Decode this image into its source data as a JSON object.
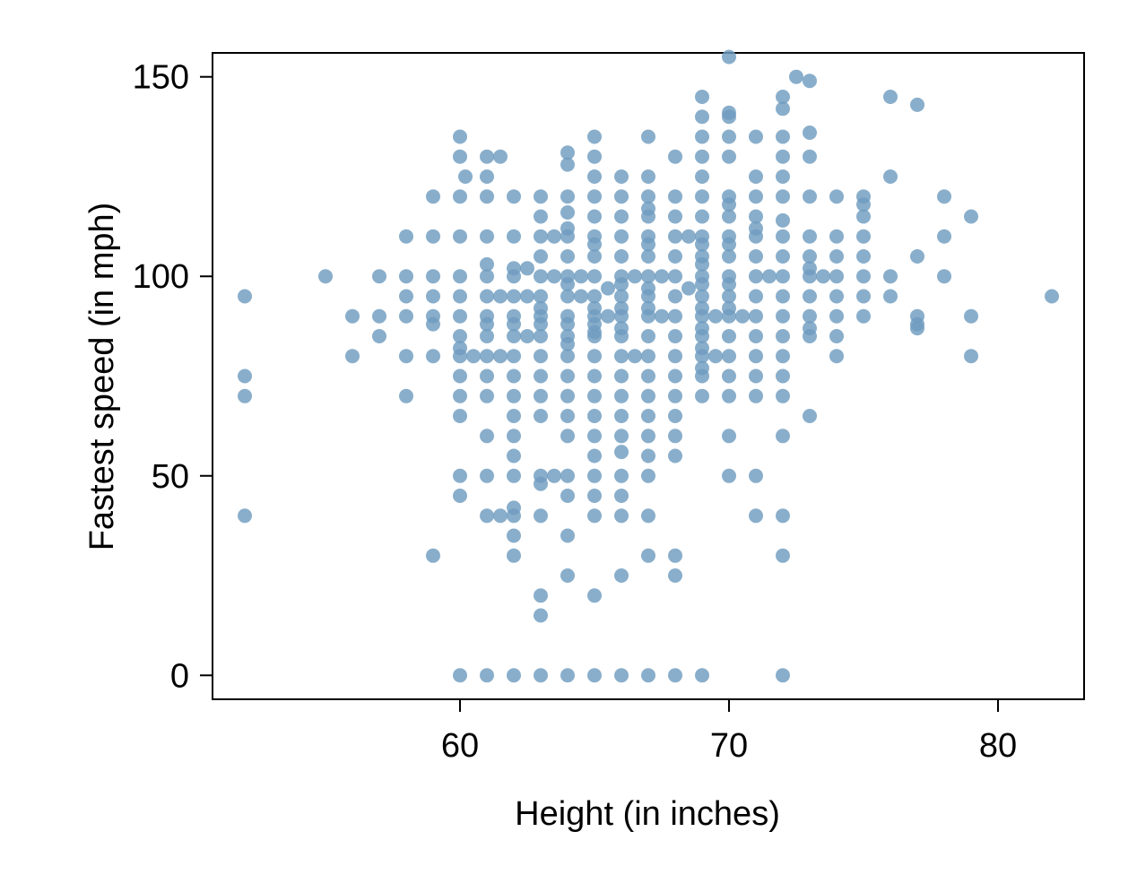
{
  "chart_data": {
    "type": "scatter",
    "title": "",
    "xlabel": "Height (in inches)",
    "ylabel": "Fastest speed (in mph)",
    "xlim": [
      50.8,
      83.2
    ],
    "ylim": [
      -6,
      156
    ],
    "xticks": [
      60,
      70,
      80
    ],
    "yticks": [
      0,
      50,
      100,
      150
    ],
    "grid": false,
    "legend": "none",
    "marker_color": "#6f9cc0",
    "points": [
      [
        52,
        95
      ],
      [
        52,
        75
      ],
      [
        52,
        70
      ],
      [
        52,
        40
      ],
      [
        55,
        100
      ],
      [
        56,
        90
      ],
      [
        56,
        80
      ],
      [
        57,
        100
      ],
      [
        57,
        90
      ],
      [
        57,
        85
      ],
      [
        58,
        110
      ],
      [
        58,
        100
      ],
      [
        58,
        95
      ],
      [
        58,
        90
      ],
      [
        58,
        80
      ],
      [
        58,
        70
      ],
      [
        59,
        120
      ],
      [
        59,
        110
      ],
      [
        59,
        100
      ],
      [
        59,
        95
      ],
      [
        59,
        90
      ],
      [
        59,
        88
      ],
      [
        59,
        80
      ],
      [
        59,
        30
      ],
      [
        60,
        135
      ],
      [
        60,
        130
      ],
      [
        60,
        120
      ],
      [
        60,
        110
      ],
      [
        60,
        100
      ],
      [
        60,
        95
      ],
      [
        60,
        90
      ],
      [
        60,
        85
      ],
      [
        60,
        82
      ],
      [
        60,
        80
      ],
      [
        60,
        75
      ],
      [
        60,
        70
      ],
      [
        60,
        65
      ],
      [
        60,
        50
      ],
      [
        60,
        45
      ],
      [
        60,
        0
      ],
      [
        60.2,
        125
      ],
      [
        60.5,
        80
      ],
      [
        61,
        130
      ],
      [
        61,
        125
      ],
      [
        61,
        120
      ],
      [
        61,
        110
      ],
      [
        61,
        103
      ],
      [
        61,
        100
      ],
      [
        61,
        95
      ],
      [
        61,
        90
      ],
      [
        61,
        88
      ],
      [
        61,
        85
      ],
      [
        61,
        80
      ],
      [
        61,
        75
      ],
      [
        61,
        70
      ],
      [
        61,
        60
      ],
      [
        61,
        50
      ],
      [
        61,
        40
      ],
      [
        61,
        0
      ],
      [
        61.5,
        130
      ],
      [
        61.5,
        95
      ],
      [
        61.5,
        80
      ],
      [
        61.5,
        40
      ],
      [
        62,
        120
      ],
      [
        62,
        110
      ],
      [
        62,
        102
      ],
      [
        62,
        100
      ],
      [
        62,
        95
      ],
      [
        62,
        90
      ],
      [
        62,
        88
      ],
      [
        62,
        85
      ],
      [
        62,
        80
      ],
      [
        62,
        75
      ],
      [
        62,
        70
      ],
      [
        62,
        65
      ],
      [
        62,
        60
      ],
      [
        62,
        55
      ],
      [
        62,
        50
      ],
      [
        62,
        42
      ],
      [
        62,
        40
      ],
      [
        62,
        35
      ],
      [
        62,
        30
      ],
      [
        62,
        0
      ],
      [
        62.5,
        102
      ],
      [
        62.5,
        95
      ],
      [
        62.5,
        85
      ],
      [
        63,
        120
      ],
      [
        63,
        115
      ],
      [
        63,
        110
      ],
      [
        63,
        105
      ],
      [
        63,
        100
      ],
      [
        63,
        95
      ],
      [
        63,
        92
      ],
      [
        63,
        90
      ],
      [
        63,
        88
      ],
      [
        63,
        85
      ],
      [
        63,
        80
      ],
      [
        63,
        75
      ],
      [
        63,
        70
      ],
      [
        63,
        65
      ],
      [
        63,
        50
      ],
      [
        63,
        48
      ],
      [
        63,
        40
      ],
      [
        63,
        20
      ],
      [
        63,
        15
      ],
      [
        63,
        0
      ],
      [
        63.5,
        110
      ],
      [
        63.5,
        100
      ],
      [
        63.5,
        50
      ],
      [
        64,
        131
      ],
      [
        64,
        128
      ],
      [
        64,
        120
      ],
      [
        64,
        116
      ],
      [
        64,
        112
      ],
      [
        64,
        110
      ],
      [
        64,
        105
      ],
      [
        64,
        100
      ],
      [
        64,
        98
      ],
      [
        64,
        95
      ],
      [
        64,
        90
      ],
      [
        64,
        88
      ],
      [
        64,
        85
      ],
      [
        64,
        83
      ],
      [
        64,
        80
      ],
      [
        64,
        75
      ],
      [
        64,
        70
      ],
      [
        64,
        65
      ],
      [
        64,
        60
      ],
      [
        64,
        50
      ],
      [
        64,
        45
      ],
      [
        64,
        35
      ],
      [
        64,
        25
      ],
      [
        64,
        0
      ],
      [
        64.5,
        100
      ],
      [
        64.5,
        95
      ],
      [
        65,
        135
      ],
      [
        65,
        130
      ],
      [
        65,
        125
      ],
      [
        65,
        120
      ],
      [
        65,
        115
      ],
      [
        65,
        110
      ],
      [
        65,
        108
      ],
      [
        65,
        105
      ],
      [
        65,
        100
      ],
      [
        65,
        95
      ],
      [
        65,
        92
      ],
      [
        65,
        90
      ],
      [
        65,
        88
      ],
      [
        65,
        86
      ],
      [
        65,
        85
      ],
      [
        65,
        80
      ],
      [
        65,
        75
      ],
      [
        65,
        70
      ],
      [
        65,
        65
      ],
      [
        65,
        60
      ],
      [
        65,
        55
      ],
      [
        65,
        50
      ],
      [
        65,
        45
      ],
      [
        65,
        40
      ],
      [
        65,
        20
      ],
      [
        65,
        0
      ],
      [
        65.5,
        97
      ],
      [
        65.5,
        90
      ],
      [
        66,
        125
      ],
      [
        66,
        120
      ],
      [
        66,
        115
      ],
      [
        66,
        110
      ],
      [
        66,
        105
      ],
      [
        66,
        100
      ],
      [
        66,
        98
      ],
      [
        66,
        95
      ],
      [
        66,
        92
      ],
      [
        66,
        90
      ],
      [
        66,
        87
      ],
      [
        66,
        85
      ],
      [
        66,
        80
      ],
      [
        66,
        75
      ],
      [
        66,
        70
      ],
      [
        66,
        65
      ],
      [
        66,
        60
      ],
      [
        66,
        56
      ],
      [
        66,
        50
      ],
      [
        66,
        45
      ],
      [
        66,
        40
      ],
      [
        66,
        25
      ],
      [
        66,
        0
      ],
      [
        66.5,
        100
      ],
      [
        66.5,
        80
      ],
      [
        67,
        135
      ],
      [
        67,
        125
      ],
      [
        67,
        120
      ],
      [
        67,
        117
      ],
      [
        67,
        115
      ],
      [
        67,
        110
      ],
      [
        67,
        108
      ],
      [
        67,
        105
      ],
      [
        67,
        100
      ],
      [
        67,
        97
      ],
      [
        67,
        95
      ],
      [
        67,
        92
      ],
      [
        67,
        90
      ],
      [
        67,
        85
      ],
      [
        67,
        80
      ],
      [
        67,
        75
      ],
      [
        67,
        70
      ],
      [
        67,
        65
      ],
      [
        67,
        60
      ],
      [
        67,
        55
      ],
      [
        67,
        50
      ],
      [
        67,
        40
      ],
      [
        67,
        30
      ],
      [
        67,
        0
      ],
      [
        67.5,
        100
      ],
      [
        67.5,
        90
      ],
      [
        68,
        130
      ],
      [
        68,
        120
      ],
      [
        68,
        115
      ],
      [
        68,
        110
      ],
      [
        68,
        105
      ],
      [
        68,
        100
      ],
      [
        68,
        95
      ],
      [
        68,
        90
      ],
      [
        68,
        85
      ],
      [
        68,
        80
      ],
      [
        68,
        75
      ],
      [
        68,
        70
      ],
      [
        68,
        65
      ],
      [
        68,
        60
      ],
      [
        68,
        55
      ],
      [
        68,
        30
      ],
      [
        68,
        25
      ],
      [
        68,
        0
      ],
      [
        68.5,
        110
      ],
      [
        68.5,
        97
      ],
      [
        69,
        145
      ],
      [
        69,
        140
      ],
      [
        69,
        135
      ],
      [
        69,
        130
      ],
      [
        69,
        125
      ],
      [
        69,
        120
      ],
      [
        69,
        115
      ],
      [
        69,
        110
      ],
      [
        69,
        108
      ],
      [
        69,
        105
      ],
      [
        69,
        103
      ],
      [
        69,
        100
      ],
      [
        69,
        98
      ],
      [
        69,
        95
      ],
      [
        69,
        92
      ],
      [
        69,
        90
      ],
      [
        69,
        87
      ],
      [
        69,
        85
      ],
      [
        69,
        82
      ],
      [
        69,
        80
      ],
      [
        69,
        77
      ],
      [
        69,
        75
      ],
      [
        69,
        70
      ],
      [
        69,
        0
      ],
      [
        69.5,
        90
      ],
      [
        69.5,
        80
      ],
      [
        70,
        155
      ],
      [
        70,
        141
      ],
      [
        70,
        140
      ],
      [
        70,
        135
      ],
      [
        70,
        130
      ],
      [
        70,
        120
      ],
      [
        70,
        118
      ],
      [
        70,
        115
      ],
      [
        70,
        110
      ],
      [
        70,
        108
      ],
      [
        70,
        105
      ],
      [
        70,
        100
      ],
      [
        70,
        98
      ],
      [
        70,
        95
      ],
      [
        70,
        92
      ],
      [
        70,
        90
      ],
      [
        70,
        85
      ],
      [
        70,
        80
      ],
      [
        70,
        75
      ],
      [
        70,
        70
      ],
      [
        70,
        60
      ],
      [
        70,
        50
      ],
      [
        70.5,
        90
      ],
      [
        71,
        135
      ],
      [
        71,
        125
      ],
      [
        71,
        120
      ],
      [
        71,
        115
      ],
      [
        71,
        112
      ],
      [
        71,
        110
      ],
      [
        71,
        105
      ],
      [
        71,
        100
      ],
      [
        71,
        95
      ],
      [
        71,
        90
      ],
      [
        71,
        85
      ],
      [
        71,
        80
      ],
      [
        71,
        75
      ],
      [
        71,
        70
      ],
      [
        71,
        50
      ],
      [
        71,
        40
      ],
      [
        71.5,
        100
      ],
      [
        72,
        145
      ],
      [
        72,
        142
      ],
      [
        72,
        135
      ],
      [
        72,
        130
      ],
      [
        72,
        125
      ],
      [
        72,
        120
      ],
      [
        72,
        114
      ],
      [
        72,
        110
      ],
      [
        72,
        105
      ],
      [
        72,
        100
      ],
      [
        72,
        95
      ],
      [
        72,
        90
      ],
      [
        72,
        85
      ],
      [
        72,
        80
      ],
      [
        72,
        75
      ],
      [
        72,
        70
      ],
      [
        72,
        60
      ],
      [
        72,
        40
      ],
      [
        72,
        30
      ],
      [
        72,
        0
      ],
      [
        72.5,
        150
      ],
      [
        73,
        149
      ],
      [
        73,
        136
      ],
      [
        73,
        130
      ],
      [
        73,
        120
      ],
      [
        73,
        110
      ],
      [
        73,
        105
      ],
      [
        73,
        102
      ],
      [
        73,
        100
      ],
      [
        73,
        95
      ],
      [
        73,
        90
      ],
      [
        73,
        87
      ],
      [
        73,
        85
      ],
      [
        73,
        65
      ],
      [
        73.5,
        100
      ],
      [
        74,
        120
      ],
      [
        74,
        110
      ],
      [
        74,
        105
      ],
      [
        74,
        100
      ],
      [
        74,
        95
      ],
      [
        74,
        90
      ],
      [
        74,
        85
      ],
      [
        74,
        80
      ],
      [
        75,
        120
      ],
      [
        75,
        118
      ],
      [
        75,
        115
      ],
      [
        75,
        110
      ],
      [
        75,
        105
      ],
      [
        75,
        100
      ],
      [
        75,
        95
      ],
      [
        75,
        90
      ],
      [
        76,
        145
      ],
      [
        76,
        125
      ],
      [
        76,
        100
      ],
      [
        76,
        95
      ],
      [
        77,
        143
      ],
      [
        77,
        105
      ],
      [
        77,
        90
      ],
      [
        77,
        88
      ],
      [
        77,
        87
      ],
      [
        78,
        120
      ],
      [
        78,
        110
      ],
      [
        78,
        100
      ],
      [
        79,
        115
      ],
      [
        79,
        90
      ],
      [
        79,
        80
      ],
      [
        82,
        95
      ]
    ]
  }
}
